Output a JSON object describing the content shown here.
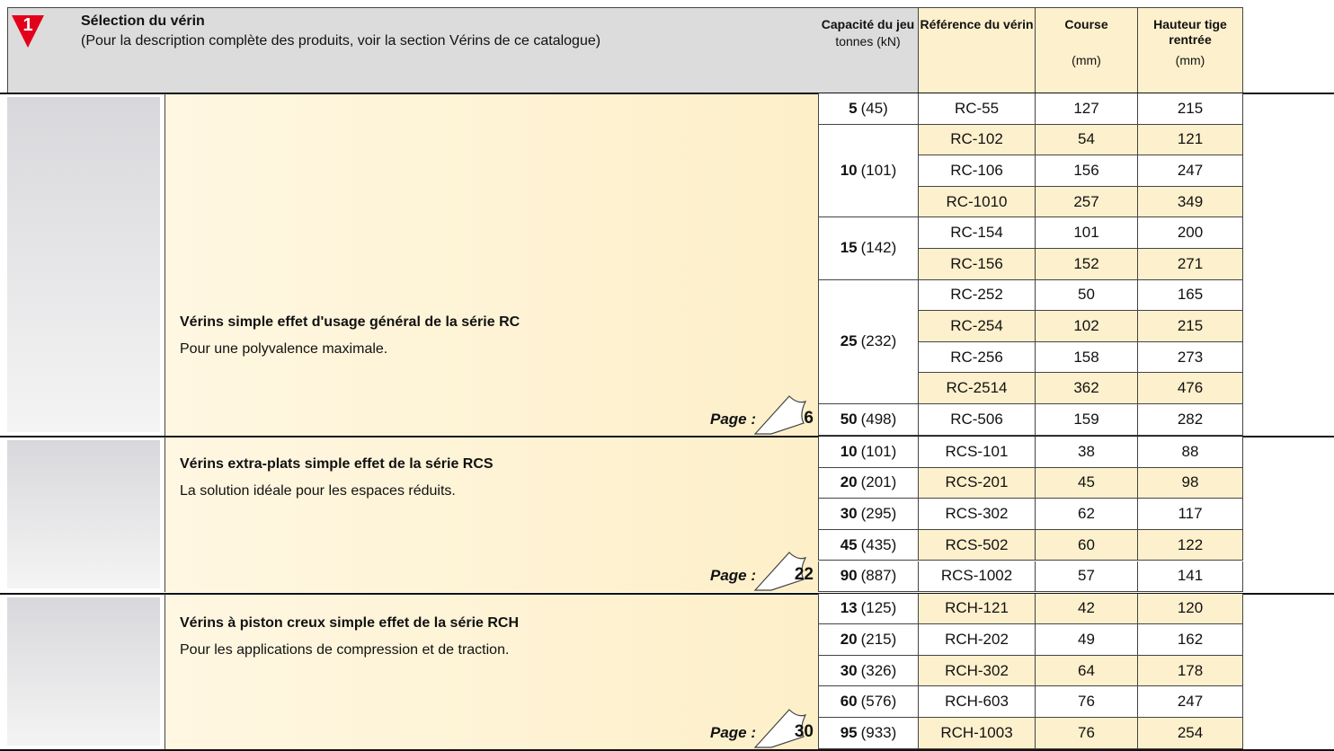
{
  "header": {
    "step": "1",
    "title": "Sélection du vérin",
    "subtitle": "(Pour la description complète des produits, voir la section Vérins de ce catalogue)",
    "columns": [
      {
        "title": "Capacité du jeu",
        "unit": "tonnes (kN)"
      },
      {
        "title": "Référence du vérin"
      },
      {
        "title": "Course",
        "unit": "(mm)"
      },
      {
        "title": "Hauteur tige rentrée",
        "unit": "(mm)"
      }
    ]
  },
  "sections": [
    {
      "title": "Vérins simple effet d'usage général de la série RC",
      "subtitle": "Pour une polyvalence maximale.",
      "page_label": "Page :",
      "page": "6",
      "groups": [
        {
          "tonnes": "5",
          "kn": "(45)",
          "models": [
            {
              "ref": "RC-55",
              "course": "127",
              "height": "215"
            }
          ]
        },
        {
          "tonnes": "10",
          "kn": "(101)",
          "models": [
            {
              "ref": "RC-102",
              "course": "54",
              "height": "121"
            },
            {
              "ref": "RC-106",
              "course": "156",
              "height": "247"
            },
            {
              "ref": "RC-1010",
              "course": "257",
              "height": "349"
            }
          ]
        },
        {
          "tonnes": "15",
          "kn": "(142)",
          "models": [
            {
              "ref": "RC-154",
              "course": "101",
              "height": "200"
            },
            {
              "ref": "RC-156",
              "course": "152",
              "height": "271"
            }
          ]
        },
        {
          "tonnes": "25",
          "kn": "(232)",
          "models": [
            {
              "ref": "RC-252",
              "course": "50",
              "height": "165"
            },
            {
              "ref": "RC-254",
              "course": "102",
              "height": "215"
            },
            {
              "ref": "RC-256",
              "course": "158",
              "height": "273"
            },
            {
              "ref": "RC-2514",
              "course": "362",
              "height": "476"
            }
          ]
        },
        {
          "tonnes": "50",
          "kn": "(498)",
          "models": [
            {
              "ref": "RC-506",
              "course": "159",
              "height": "282"
            }
          ]
        }
      ]
    },
    {
      "title": "Vérins extra-plats simple effet de la série RCS",
      "subtitle": "La solution idéale pour les espaces réduits.",
      "page_label": "Page :",
      "page": "22",
      "groups": [
        {
          "tonnes": "10",
          "kn": "(101)",
          "models": [
            {
              "ref": "RCS-101",
              "course": "38",
              "height": "88"
            }
          ]
        },
        {
          "tonnes": "20",
          "kn": "(201)",
          "models": [
            {
              "ref": "RCS-201",
              "course": "45",
              "height": "98"
            }
          ]
        },
        {
          "tonnes": "30",
          "kn": "(295)",
          "models": [
            {
              "ref": "RCS-302",
              "course": "62",
              "height": "117"
            }
          ]
        },
        {
          "tonnes": "45",
          "kn": "(435)",
          "models": [
            {
              "ref": "RCS-502",
              "course": "60",
              "height": "122"
            }
          ]
        },
        {
          "tonnes": "90",
          "kn": "(887)",
          "models": [
            {
              "ref": "RCS-1002",
              "course": "57",
              "height": "141"
            }
          ]
        }
      ]
    },
    {
      "title": "Vérins à piston creux simple effet de la série RCH",
      "subtitle": "Pour les applications de compression et de traction.",
      "page_label": "Page :",
      "page": "30",
      "groups": [
        {
          "tonnes": "13",
          "kn": "(125)",
          "models": [
            {
              "ref": "RCH-121",
              "course": "42",
              "height": "120"
            }
          ]
        },
        {
          "tonnes": "20",
          "kn": "(215)",
          "models": [
            {
              "ref": "RCH-202",
              "course": "49",
              "height": "162"
            }
          ]
        },
        {
          "tonnes": "30",
          "kn": "(326)",
          "models": [
            {
              "ref": "RCH-302",
              "course": "64",
              "height": "178"
            }
          ]
        },
        {
          "tonnes": "60",
          "kn": "(576)",
          "models": [
            {
              "ref": "RCH-603",
              "course": "76",
              "height": "247"
            }
          ]
        },
        {
          "tonnes": "95",
          "kn": "(933)",
          "models": [
            {
              "ref": "RCH-1003",
              "course": "76",
              "height": "254"
            }
          ]
        }
      ]
    }
  ]
}
